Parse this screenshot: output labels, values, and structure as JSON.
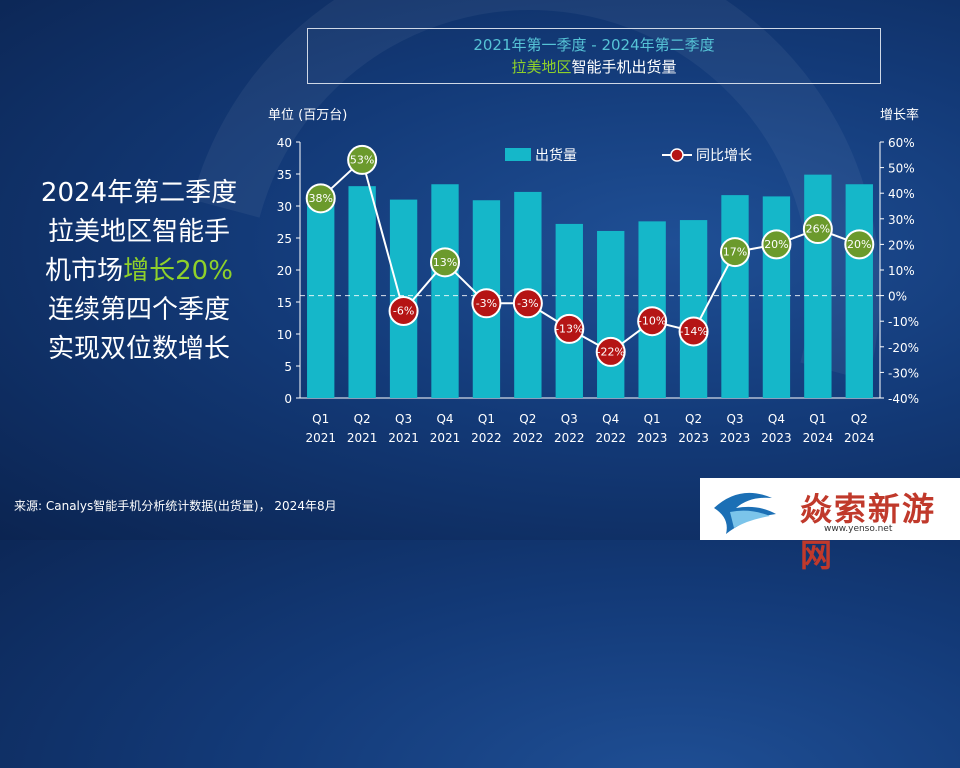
{
  "title": {
    "line1": "2021年第一季度 - 2024年第二季度",
    "line2_green": "拉美地区",
    "line2_white": "智能手机出货量"
  },
  "headline": {
    "line1": "2024年第二季度",
    "line2": "拉美地区智能手",
    "line3_pre": "机市场",
    "line3_highlight": "增长20%",
    "line4": "连续第四个季度",
    "line5": "实现双位数增长"
  },
  "source": "来源: Canalys智能手机分析统计数据(出货量)， 2024年8月",
  "watermark": {
    "name": "焱索新游网",
    "url": "www.yenso.net"
  },
  "colors": {
    "bar": "#15b7c9",
    "positive_marker": "#6b9a2c",
    "negative_marker": "#b51515",
    "line": "#ffffff",
    "highlight": "#8fd12a"
  },
  "chart_data": {
    "type": "bar",
    "categories": [
      [
        "Q1",
        "2021"
      ],
      [
        "Q2",
        "2021"
      ],
      [
        "Q3",
        "2021"
      ],
      [
        "Q4",
        "2021"
      ],
      [
        "Q1",
        "2022"
      ],
      [
        "Q2",
        "2022"
      ],
      [
        "Q3",
        "2022"
      ],
      [
        "Q4",
        "2022"
      ],
      [
        "Q1",
        "2023"
      ],
      [
        "Q2",
        "2023"
      ],
      [
        "Q3",
        "2023"
      ],
      [
        "Q4",
        "2023"
      ],
      [
        "Q1",
        "2024"
      ],
      [
        "Q2",
        "2024"
      ]
    ],
    "series": [
      {
        "name": "出货量",
        "type": "bar",
        "axis": "left",
        "values": [
          32.3,
          33.1,
          31.0,
          33.4,
          30.9,
          32.2,
          27.2,
          26.1,
          27.6,
          27.8,
          31.7,
          31.5,
          34.9,
          33.4
        ]
      },
      {
        "name": "同比增长",
        "type": "line",
        "axis": "right",
        "values": [
          38,
          53,
          -6,
          13,
          -3,
          -3,
          -13,
          -22,
          -10,
          -14,
          17,
          20,
          26,
          20
        ],
        "labels": [
          "38%",
          "53%",
          "-6%",
          "13%",
          "-3%",
          "-3%",
          "-13%",
          "-22%",
          "-10%",
          "-14%",
          "17%",
          "20%",
          "26%",
          "20%"
        ]
      }
    ],
    "ylabel_left": "单位 (百万台)",
    "ylabel_right": "增长率",
    "ylim_left": [
      0,
      40
    ],
    "ylim_right": [
      -40,
      60
    ],
    "yticks_left": [
      "0",
      "5",
      "10",
      "15",
      "20",
      "25",
      "30",
      "35",
      "40"
    ],
    "yticks_right": [
      "-40%",
      "-30%",
      "-20%",
      "-10%",
      "0%",
      "10%",
      "20%",
      "30%",
      "40%",
      "50%",
      "60%"
    ],
    "zero_line_right": true,
    "grid": false,
    "legend": "top-center"
  }
}
